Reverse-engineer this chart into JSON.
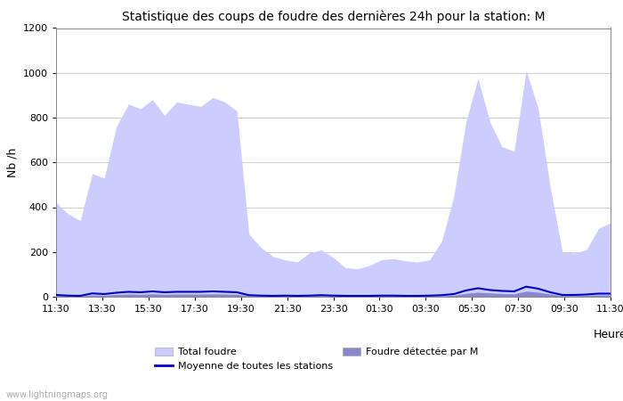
{
  "title": "Statistique des coups de foudre des dernières 24h pour la station: M",
  "ylabel": "Nb /h",
  "xlabel": "Heure",
  "watermark": "www.lightningmaps.org",
  "ylim": [
    0,
    1200
  ],
  "yticks": [
    0,
    200,
    400,
    600,
    800,
    1000,
    1200
  ],
  "x_labels": [
    "11:30",
    "13:30",
    "15:30",
    "17:30",
    "19:30",
    "21:30",
    "23:30",
    "01:30",
    "03:30",
    "05:30",
    "07:30",
    "09:30",
    "11:30"
  ],
  "color_total": "#ccccff",
  "color_detected": "#8888cc",
  "color_mean": "#0000cc",
  "background": "#ffffff",
  "grid_color": "#cccccc",
  "total_foudre": [
    420,
    370,
    340,
    550,
    530,
    760,
    860,
    840,
    880,
    810,
    870,
    860,
    850,
    890,
    870,
    830,
    280,
    220,
    180,
    165,
    155,
    195,
    210,
    175,
    130,
    125,
    140,
    165,
    170,
    160,
    155,
    165,
    250,
    450,
    780,
    975,
    780,
    670,
    650,
    1010,
    840,
    490,
    200,
    195,
    210,
    305,
    330
  ],
  "detected_foudre": [
    5,
    4,
    3,
    8,
    7,
    10,
    12,
    11,
    13,
    11,
    12,
    12,
    12,
    13,
    12,
    11,
    4,
    3,
    2,
    3,
    2,
    3,
    4,
    3,
    2,
    2,
    2,
    3,
    3,
    2,
    2,
    3,
    4,
    7,
    15,
    20,
    17,
    14,
    13,
    25,
    20,
    12,
    5,
    5,
    6,
    8,
    8
  ],
  "mean_foudre": [
    8,
    5,
    4,
    15,
    12,
    18,
    22,
    20,
    24,
    20,
    22,
    22,
    22,
    24,
    22,
    20,
    7,
    5,
    4,
    5,
    4,
    5,
    7,
    5,
    4,
    4,
    4,
    5,
    5,
    4,
    4,
    5,
    7,
    12,
    28,
    38,
    30,
    26,
    24,
    45,
    36,
    20,
    8,
    8,
    10,
    14,
    14
  ],
  "n_points": 47,
  "title_fontsize": 10,
  "tick_fontsize": 8,
  "label_fontsize": 9,
  "legend_fontsize": 8
}
